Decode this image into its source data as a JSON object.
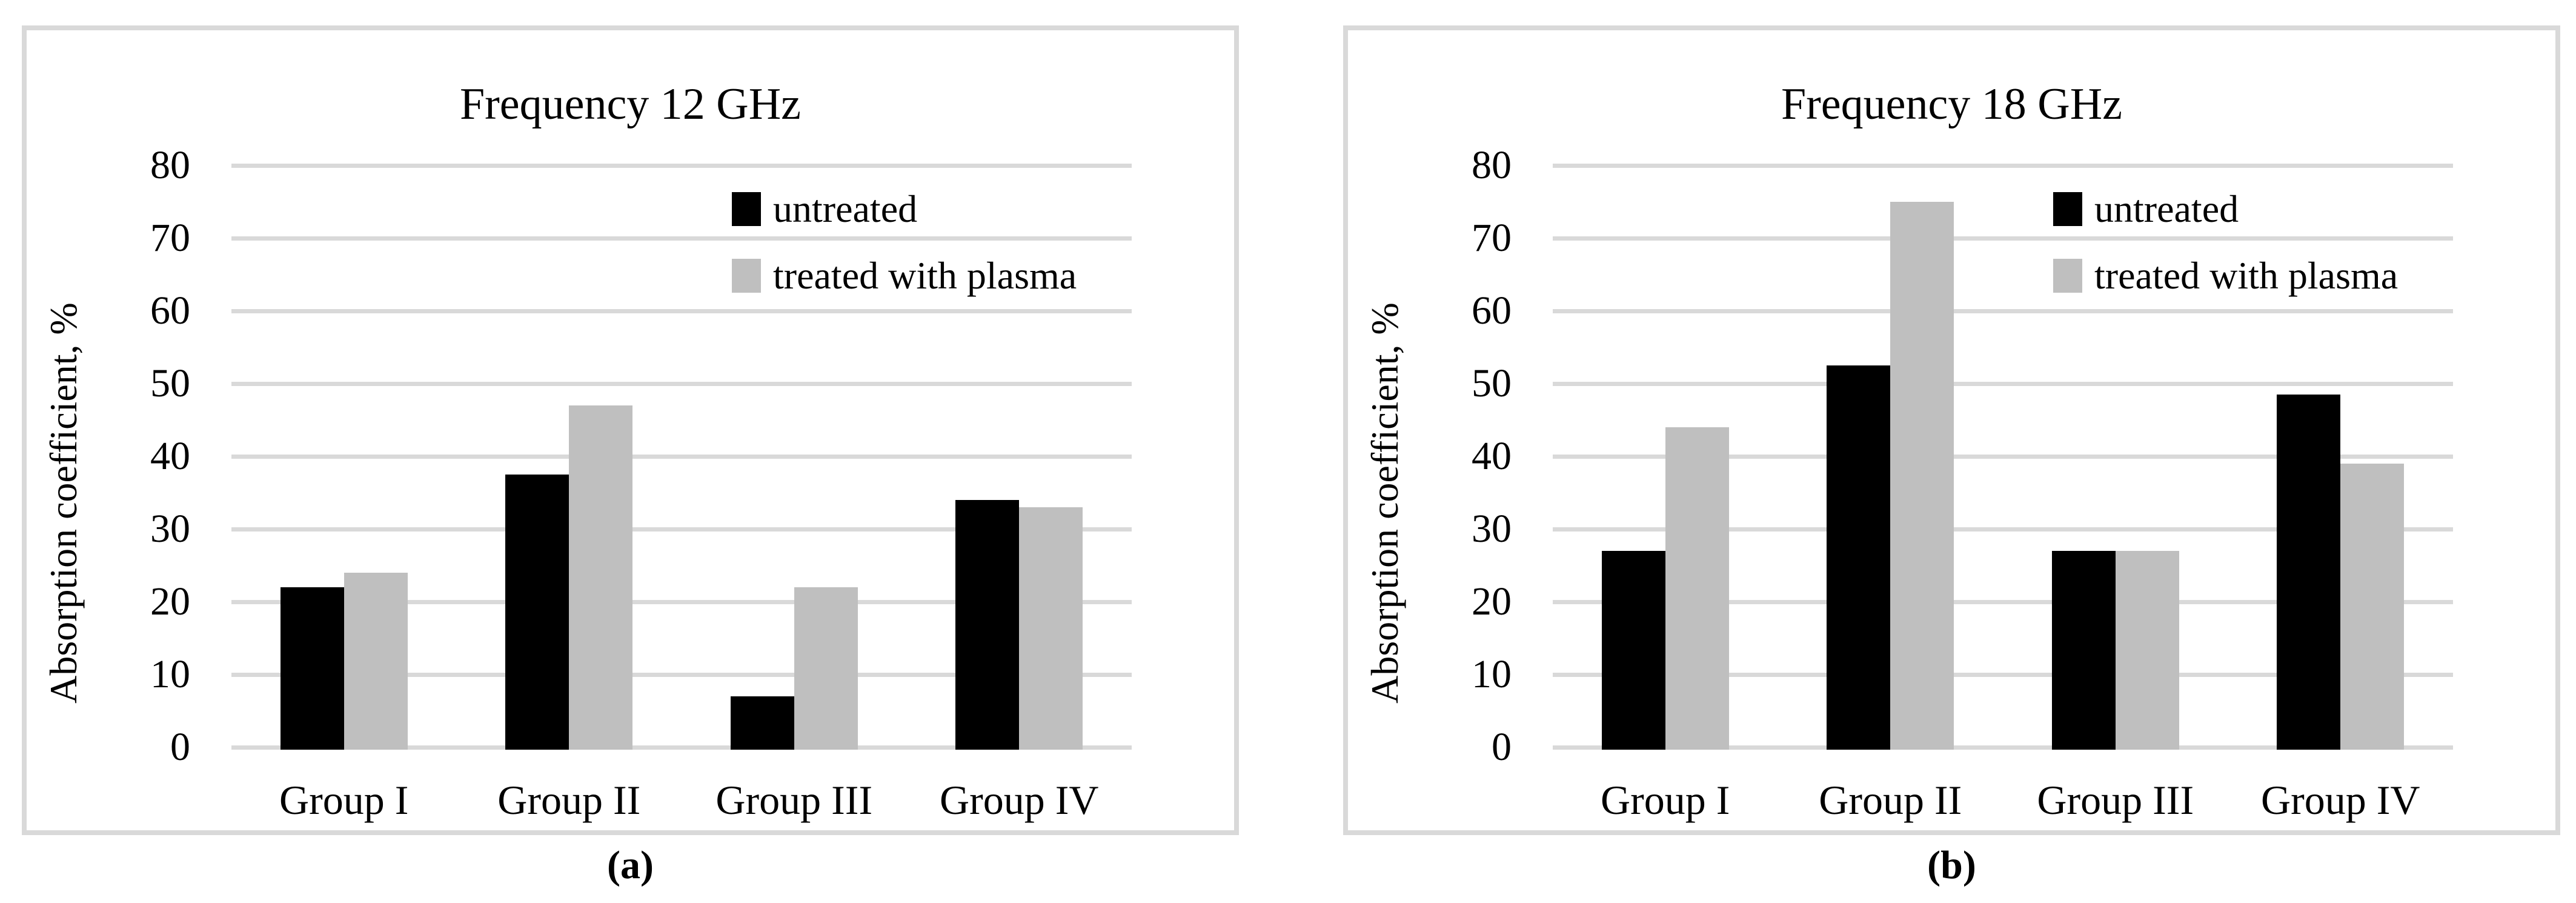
{
  "colors": {
    "background": "#ffffff",
    "panel_border": "#d9d9d9",
    "gridline": "#d9d9d9",
    "bar_untreated": "#000000",
    "bar_treated_with_plasma": "#bfbfbf",
    "text": "#000000"
  },
  "chart_data": [
    {
      "type": "bar",
      "title": "Frequency 12 GHz",
      "caption": "(a)",
      "xlabel": "",
      "ylabel": "Absorption coefficient, %",
      "ylim": [
        0,
        80
      ],
      "y_ticks": [
        80,
        70,
        60,
        50,
        40,
        30,
        20,
        10,
        0
      ],
      "grid": true,
      "legend_position": "inside-upper-right",
      "categories": [
        "Group I",
        "Group II",
        "Group III",
        "Group IV"
      ],
      "series": [
        {
          "name": "untreated",
          "color": "#000000",
          "values": [
            22,
            37.5,
            7,
            34
          ]
        },
        {
          "name": "treated with plasma",
          "color": "#bfbfbf",
          "values": [
            24,
            47,
            22,
            33
          ]
        }
      ]
    },
    {
      "type": "bar",
      "title": "Frequency 18 GHz",
      "caption": "(b)",
      "xlabel": "",
      "ylabel": "Absorption coefficient, %",
      "ylim": [
        0,
        80
      ],
      "y_ticks": [
        80,
        70,
        60,
        50,
        40,
        30,
        20,
        10,
        0
      ],
      "grid": true,
      "legend_position": "inside-upper-right",
      "categories": [
        "Group I",
        "Group II",
        "Group III",
        "Group IV"
      ],
      "series": [
        {
          "name": "untreated",
          "color": "#000000",
          "values": [
            27,
            52.5,
            27,
            48.5
          ]
        },
        {
          "name": "treated with plasma",
          "color": "#bfbfbf",
          "values": [
            44,
            75,
            27,
            39
          ]
        }
      ]
    }
  ]
}
